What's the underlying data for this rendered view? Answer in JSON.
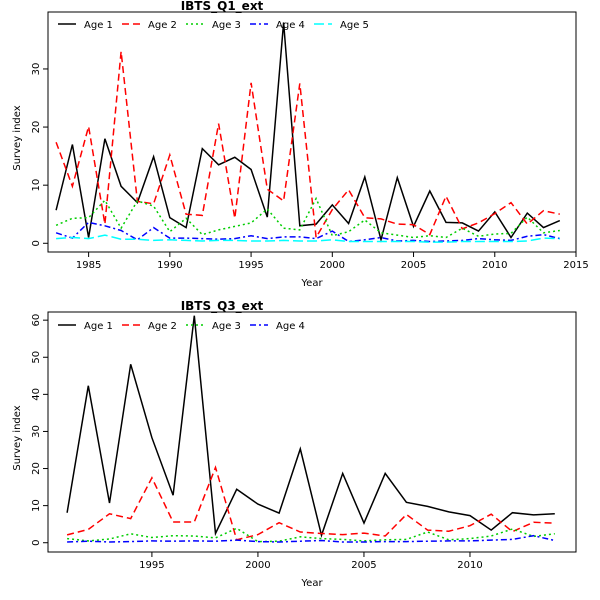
{
  "chart_data": [
    {
      "type": "line",
      "title": "IBTS_Q1_ext",
      "xlabel": "Year",
      "ylabel": "Survey index",
      "xlim": [
        1982.5,
        2015
      ],
      "ylim": [
        -1.5,
        39.8
      ],
      "xticks": [
        1985,
        1990,
        1995,
        2000,
        2005,
        2010,
        2015
      ],
      "yticks": [
        0,
        10,
        20,
        30
      ],
      "legend_position": "top",
      "x": [
        1983,
        1984,
        1985,
        1986,
        1987,
        1988,
        1989,
        1990,
        1991,
        1992,
        1993,
        1994,
        1995,
        1996,
        1997,
        1998,
        1999,
        2000,
        2001,
        2002,
        2003,
        2004,
        2005,
        2006,
        2007,
        2008,
        2009,
        2010,
        2011,
        2012,
        2013,
        2014
      ],
      "series": [
        {
          "name": "Age 1",
          "color": "#000000",
          "dash": "solid",
          "values": [
            5.7,
            17.0,
            1.0,
            18.0,
            9.8,
            7.0,
            14.9,
            4.4,
            2.7,
            16.3,
            13.5,
            14.8,
            12.7,
            4.5,
            38.0,
            3.0,
            3.3,
            6.6,
            3.4,
            11.4,
            0.6,
            11.3,
            2.9,
            9.0,
            3.6,
            3.5,
            2.1,
            5.4,
            1.0,
            5.2,
            2.7,
            3.9
          ]
        },
        {
          "name": "Age 2",
          "color": "#ff0000",
          "dash": "dashed",
          "values": [
            17.4,
            9.8,
            20.1,
            3.3,
            33.0,
            7.2,
            6.8,
            15.2,
            5.0,
            4.8,
            20.6,
            4.3,
            27.6,
            9.3,
            7.3,
            27.5,
            1.0,
            5.8,
            9.2,
            4.4,
            4.2,
            3.3,
            3.2,
            1.5,
            8.1,
            2.5,
            3.5,
            5.1,
            7.0,
            3.3,
            5.6,
            5.0
          ]
        },
        {
          "name": "Age 3",
          "color": "#00cd00",
          "dash": "dotted",
          "values": [
            3.1,
            4.3,
            4.4,
            7.4,
            2.6,
            7.3,
            6.4,
            2.0,
            4.3,
            1.5,
            2.3,
            2.9,
            3.5,
            5.9,
            2.6,
            2.3,
            7.7,
            1.3,
            2.0,
            4.0,
            1.8,
            1.4,
            1.0,
            1.3,
            1.0,
            2.6,
            1.2,
            1.6,
            1.7,
            4.5,
            1.8,
            2.2
          ]
        },
        {
          "name": "Age 4",
          "color": "#0000ff",
          "dash": "dashdot",
          "values": [
            1.8,
            0.9,
            3.6,
            3.0,
            2.2,
            0.6,
            2.7,
            0.9,
            0.9,
            0.8,
            0.7,
            0.8,
            1.3,
            0.8,
            1.1,
            1.1,
            0.8,
            2.1,
            0.3,
            0.6,
            1.0,
            0.4,
            0.5,
            0.3,
            0.4,
            0.5,
            0.8,
            0.6,
            0.5,
            1.2,
            1.5,
            0.8
          ]
        },
        {
          "name": "Age 5",
          "color": "#00ffff",
          "dash": "longdash",
          "values": [
            0.8,
            1.0,
            0.8,
            1.4,
            0.7,
            0.7,
            0.5,
            0.6,
            0.5,
            0.4,
            0.5,
            0.5,
            0.4,
            0.4,
            0.5,
            0.4,
            0.4,
            0.6,
            0.3,
            0.3,
            0.3,
            0.3,
            0.3,
            0.2,
            0.2,
            0.3,
            0.3,
            0.3,
            0.3,
            0.4,
            0.9,
            0.8
          ]
        }
      ]
    },
    {
      "type": "line",
      "title": "IBTS_Q3_ext",
      "xlabel": "Year",
      "ylabel": "Survey index",
      "xlim": [
        1990.1,
        2015
      ],
      "ylim": [
        -2.5,
        62.2
      ],
      "xticks": [
        1995,
        2000,
        2005,
        2010
      ],
      "yticks": [
        0,
        10,
        20,
        30,
        40,
        50,
        60
      ],
      "legend_position": "top",
      "x": [
        1991,
        1992,
        1993,
        1994,
        1995,
        1996,
        1997,
        1998,
        1999,
        2000,
        2001,
        2002,
        2003,
        2004,
        2005,
        2006,
        2007,
        2008,
        2009,
        2010,
        2011,
        2012,
        2013,
        2014
      ],
      "series": [
        {
          "name": "Age 1",
          "color": "#000000",
          "dash": "solid",
          "values": [
            8.1,
            42.3,
            10.7,
            48.1,
            28.3,
            12.8,
            61.2,
            2.5,
            14.4,
            10.4,
            8.0,
            25.3,
            2.0,
            18.7,
            5.3,
            18.7,
            10.9,
            9.8,
            8.3,
            7.3,
            3.4,
            8.1,
            7.5,
            7.8
          ]
        },
        {
          "name": "Age 2",
          "color": "#ff0000",
          "dash": "dashed",
          "values": [
            2.1,
            3.6,
            7.8,
            6.5,
            17.5,
            5.6,
            5.6,
            20.3,
            0.8,
            2.2,
            5.4,
            2.9,
            2.5,
            2.2,
            2.6,
            1.8,
            7.6,
            3.4,
            3.1,
            4.6,
            7.7,
            3.0,
            5.5,
            5.3
          ]
        },
        {
          "name": "Age 3",
          "color": "#00cd00",
          "dash": "dotted",
          "values": [
            1.1,
            0.5,
            1.0,
            2.4,
            1.4,
            1.9,
            1.8,
            1.3,
            3.9,
            0.3,
            0.4,
            1.6,
            1.1,
            0.9,
            0.5,
            0.8,
            0.9,
            2.9,
            0.8,
            1.1,
            1.8,
            3.7,
            1.7,
            2.4
          ]
        },
        {
          "name": "Age 4",
          "color": "#0000ff",
          "dash": "dashdot",
          "values": [
            0.2,
            0.4,
            0.2,
            0.3,
            0.5,
            0.4,
            0.5,
            0.4,
            0.7,
            0.3,
            0.2,
            0.4,
            0.6,
            0.2,
            0.2,
            0.3,
            0.3,
            0.4,
            0.5,
            0.5,
            0.7,
            0.9,
            1.9,
            0.6
          ]
        }
      ]
    }
  ]
}
